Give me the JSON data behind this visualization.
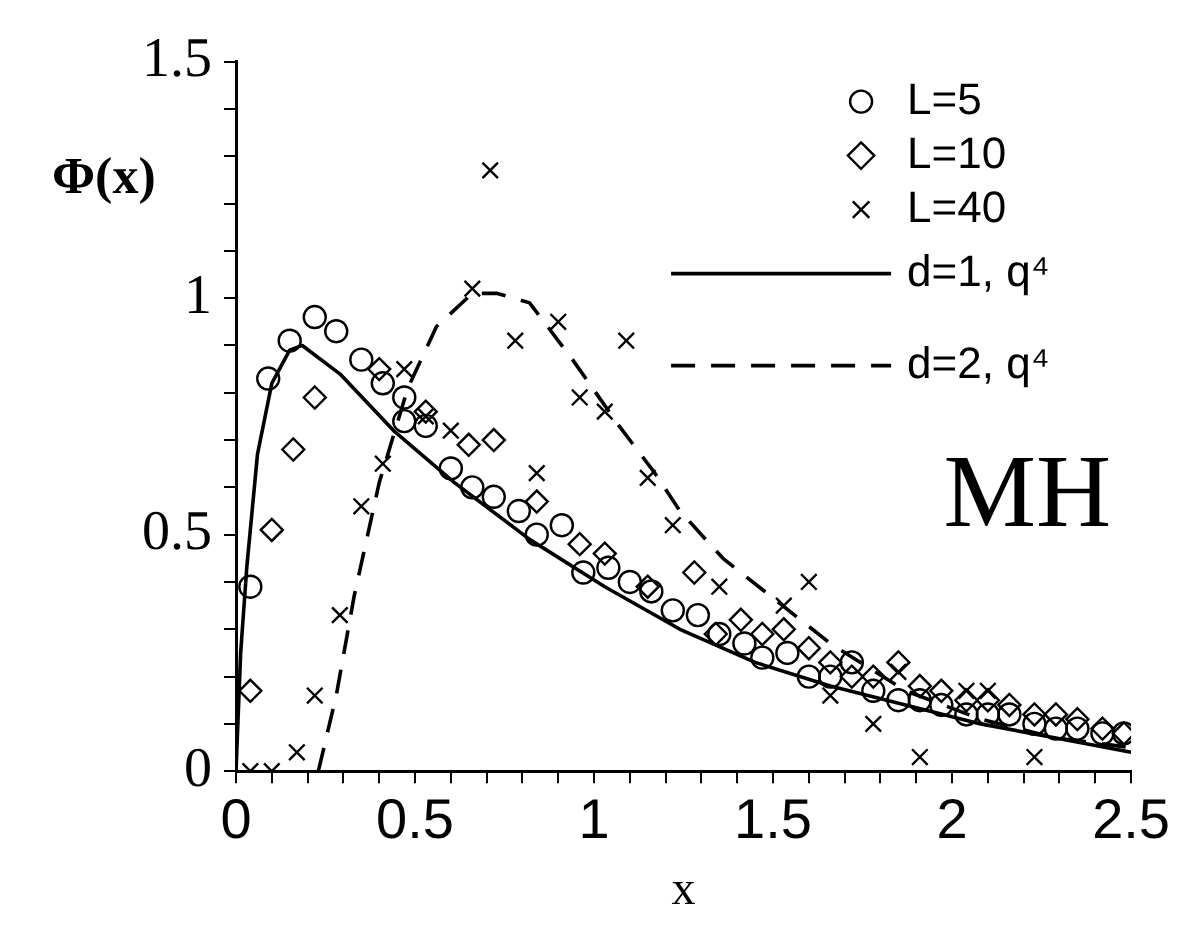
{
  "chart_data": {
    "type": "scatter",
    "xlabel": "x",
    "ylabel": "Φ(x)",
    "xlim": [
      0,
      2.5
    ],
    "ylim": [
      0,
      1.5
    ],
    "xticks": [
      0,
      {
        "value": 0.1,
        "label": null
      },
      {
        "value": 0.2,
        "label": null
      },
      {
        "value": 0.3,
        "label": null
      },
      {
        "value": 0.4,
        "label": null
      },
      0.5,
      {
        "value": 0.6,
        "label": null
      },
      {
        "value": 0.7,
        "label": null
      },
      {
        "value": 0.8,
        "label": null
      },
      {
        "value": 0.9,
        "label": null
      },
      1,
      {
        "value": 1.1,
        "label": null
      },
      {
        "value": 1.2,
        "label": null
      },
      {
        "value": 1.3,
        "label": null
      },
      {
        "value": 1.4,
        "label": null
      },
      1.5,
      {
        "value": 1.6,
        "label": null
      },
      {
        "value": 1.7,
        "label": null
      },
      {
        "value": 1.8,
        "label": null
      },
      {
        "value": 1.9,
        "label": null
      },
      2,
      {
        "value": 2.1,
        "label": null
      },
      {
        "value": 2.2,
        "label": null
      },
      {
        "value": 2.3,
        "label": null
      },
      {
        "value": 2.4,
        "label": null
      },
      2.5
    ],
    "yticks": [
      0,
      {
        "value": 0.1,
        "label": null
      },
      {
        "value": 0.2,
        "label": null
      },
      {
        "value": 0.3,
        "label": null
      },
      {
        "value": 0.4,
        "label": null
      },
      0.5,
      {
        "value": 0.6,
        "label": null
      },
      {
        "value": 0.7,
        "label": null
      },
      {
        "value": 0.8,
        "label": null
      },
      {
        "value": 0.9,
        "label": null
      },
      1,
      {
        "value": 1.1,
        "label": null
      },
      {
        "value": 1.2,
        "label": null
      },
      {
        "value": 1.3,
        "label": null
      },
      {
        "value": 1.4,
        "label": null
      },
      1.5
    ],
    "grid": false,
    "legend": "top right",
    "annotations": [
      "MH"
    ],
    "series": [
      {
        "name": "L=5",
        "type": "scatter",
        "marker": "circle",
        "color": "#000000",
        "x": [
          0.04,
          0.09,
          0.15,
          0.22,
          0.28,
          0.35,
          0.41,
          0.47,
          0.47,
          0.53,
          0.6,
          0.66,
          0.72,
          0.79,
          0.84,
          0.91,
          0.97,
          1.04,
          1.1,
          1.16,
          1.22,
          1.29,
          1.35,
          1.42,
          1.47,
          1.54,
          1.6,
          1.66,
          1.72,
          1.78,
          1.85,
          1.91,
          1.97,
          2.04,
          2.1,
          2.16,
          2.23,
          2.29,
          2.35,
          2.42,
          2.48
        ],
        "values": [
          0.39,
          0.83,
          0.91,
          0.96,
          0.93,
          0.87,
          0.82,
          0.79,
          0.74,
          0.73,
          0.64,
          0.6,
          0.58,
          0.55,
          0.5,
          0.52,
          0.42,
          0.43,
          0.4,
          0.38,
          0.34,
          0.33,
          0.29,
          0.27,
          0.24,
          0.25,
          0.2,
          0.2,
          0.23,
          0.17,
          0.15,
          0.15,
          0.14,
          0.12,
          0.12,
          0.12,
          0.1,
          0.09,
          0.09,
          0.08,
          0.08
        ]
      },
      {
        "name": "L=10",
        "type": "scatter",
        "marker": "diamond",
        "color": "#000000",
        "x": [
          0.04,
          0.1,
          0.16,
          0.22,
          0.4,
          0.53,
          0.65,
          0.72,
          0.84,
          0.96,
          1.03,
          1.15,
          1.28,
          1.34,
          1.41,
          1.47,
          1.53,
          1.6,
          1.66,
          1.72,
          1.78,
          1.85,
          1.91,
          1.97,
          2.04,
          2.1,
          2.16,
          2.23,
          2.29,
          2.35,
          2.42,
          2.48
        ],
        "values": [
          0.17,
          0.51,
          0.68,
          0.79,
          0.85,
          0.76,
          0.69,
          0.7,
          0.57,
          0.48,
          0.46,
          0.39,
          0.42,
          0.29,
          0.32,
          0.29,
          0.3,
          0.26,
          0.23,
          0.2,
          0.2,
          0.23,
          0.18,
          0.17,
          0.15,
          0.15,
          0.14,
          0.12,
          0.12,
          0.11,
          0.09,
          0.08
        ]
      },
      {
        "name": "L=40",
        "type": "scatter",
        "marker": "cross",
        "color": "#000000",
        "x": [
          0.04,
          0.1,
          0.17,
          0.22,
          0.29,
          0.35,
          0.41,
          0.47,
          0.53,
          0.6,
          0.66,
          0.71,
          0.78,
          0.84,
          0.9,
          0.96,
          1.03,
          1.09,
          1.15,
          1.22,
          1.35,
          1.53,
          1.6,
          1.66,
          1.78,
          1.85,
          1.91,
          2.04,
          2.1,
          2.23
        ],
        "values": [
          0,
          0,
          0.04,
          0.16,
          0.33,
          0.56,
          0.65,
          0.85,
          0.75,
          0.72,
          1.02,
          1.27,
          0.91,
          0.63,
          0.95,
          0.79,
          0.76,
          0.91,
          0.62,
          0.52,
          0.39,
          0.35,
          0.4,
          0.16,
          0.1,
          0.21,
          0.03,
          0.17,
          0.17,
          0.03
        ]
      },
      {
        "name": "d=1, q⁴",
        "type": "line",
        "marker": "none",
        "line_style": "solid",
        "color": "#000000",
        "x": [
          0,
          0.013,
          0.03,
          0.06,
          0.1,
          0.15,
          0.185,
          0.29,
          0.44,
          0.61,
          0.82,
          1.03,
          1.24,
          1.45,
          1.66,
          1.87,
          2.08,
          2.29,
          2.5
        ],
        "values": [
          0,
          0.25,
          0.43,
          0.67,
          0.82,
          0.89,
          0.9,
          0.84,
          0.72,
          0.61,
          0.49,
          0.39,
          0.3,
          0.23,
          0.18,
          0.14,
          0.1,
          0.07,
          0.04
        ]
      },
      {
        "name": "d=2, q⁴",
        "type": "line",
        "marker": "none",
        "line_style": "dashed",
        "color": "#000000",
        "x": [
          0.23,
          0.28,
          0.33,
          0.4,
          0.48,
          0.56,
          0.66,
          0.73,
          0.82,
          0.94,
          1.07,
          1.17,
          1.24,
          1.36,
          1.51,
          1.66,
          1.87,
          2.08,
          2.29,
          2.5
        ],
        "values": [
          0,
          0.16,
          0.37,
          0.61,
          0.81,
          0.94,
          1.01,
          1.01,
          0.99,
          0.87,
          0.73,
          0.63,
          0.55,
          0.45,
          0.36,
          0.27,
          0.17,
          0.11,
          0.07,
          0.05
        ]
      }
    ]
  }
}
